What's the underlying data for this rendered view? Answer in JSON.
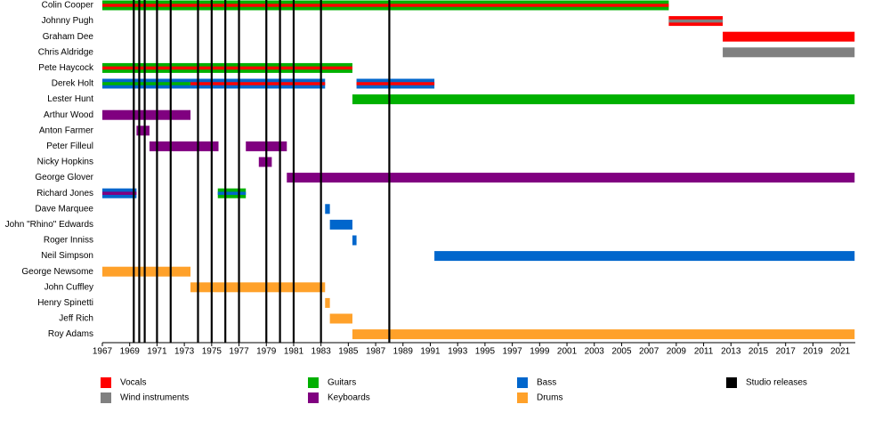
{
  "chart_data": {
    "type": "timeline",
    "xlim": [
      1967,
      2022.1
    ],
    "xticks": [
      1967,
      1969,
      1971,
      1973,
      1975,
      1977,
      1979,
      1981,
      1983,
      1985,
      1987,
      1989,
      1991,
      1993,
      1995,
      1997,
      1999,
      2001,
      2003,
      2005,
      2007,
      2009,
      2011,
      2013,
      2015,
      2017,
      2019,
      2021
    ],
    "roles": [
      {
        "name": "Vocals",
        "color": "#ff0000"
      },
      {
        "name": "Wind instruments",
        "color": "#808080"
      },
      {
        "name": "Guitars",
        "color": "#00b000"
      },
      {
        "name": "Keyboards",
        "color": "#800080"
      },
      {
        "name": "Bass",
        "color": "#0066cc"
      },
      {
        "name": "Drums",
        "color": "#ffa12a"
      }
    ],
    "releases": {
      "name": "Studio releases",
      "color": "#000000",
      "x": [
        1969.3,
        1969.7,
        1970.1,
        1971,
        1972,
        1974,
        1975,
        1976,
        1977,
        1979,
        1980,
        1981,
        1983,
        1988
      ]
    },
    "members": [
      {
        "name": "Colin Cooper",
        "periods": [
          {
            "start": 1967,
            "end": 2008.45,
            "roles": [
              "Guitars",
              "Vocals"
            ]
          }
        ]
      },
      {
        "name": "Johnny Pugh",
        "periods": [
          {
            "start": 2008.45,
            "end": 2012.4,
            "roles": [
              "Vocals",
              "Wind instruments"
            ]
          }
        ]
      },
      {
        "name": "Graham Dee",
        "periods": [
          {
            "start": 2012.4,
            "end": 2022.05,
            "roles": [
              "Vocals"
            ]
          }
        ]
      },
      {
        "name": "Chris Aldridge",
        "periods": [
          {
            "start": 2012.4,
            "end": 2022.05,
            "roles": [
              "Wind instruments"
            ]
          }
        ]
      },
      {
        "name": "Pete Haycock",
        "periods": [
          {
            "start": 1967,
            "end": 1985.3,
            "roles": [
              "Guitars",
              "Vocals"
            ]
          }
        ]
      },
      {
        "name": "Derek Holt",
        "periods": [
          {
            "start": 1967,
            "end": 1973.45,
            "roles": [
              "Bass",
              "Guitars"
            ]
          },
          {
            "start": 1973.45,
            "end": 1983.3,
            "roles": [
              "Bass",
              "Vocals"
            ]
          },
          {
            "start": 1985.6,
            "end": 1991.3,
            "roles": [
              "Bass",
              "Vocals"
            ]
          }
        ]
      },
      {
        "name": "Lester Hunt",
        "periods": [
          {
            "start": 1985.3,
            "end": 2022.05,
            "roles": [
              "Guitars"
            ]
          }
        ]
      },
      {
        "name": "Arthur Wood",
        "periods": [
          {
            "start": 1967,
            "end": 1973.45,
            "roles": [
              "Keyboards"
            ]
          }
        ]
      },
      {
        "name": "Anton Farmer",
        "periods": [
          {
            "start": 1969.5,
            "end": 1970.45,
            "roles": [
              "Keyboards"
            ]
          }
        ]
      },
      {
        "name": "Peter Filleul",
        "periods": [
          {
            "start": 1970.45,
            "end": 1975.5,
            "roles": [
              "Keyboards"
            ]
          },
          {
            "start": 1977.5,
            "end": 1980.5,
            "roles": [
              "Keyboards"
            ]
          }
        ]
      },
      {
        "name": "Nicky Hopkins",
        "periods": [
          {
            "start": 1978.45,
            "end": 1979.4,
            "roles": [
              "Keyboards"
            ]
          }
        ]
      },
      {
        "name": "George Glover",
        "periods": [
          {
            "start": 1980.5,
            "end": 2022.05,
            "roles": [
              "Keyboards"
            ]
          }
        ]
      },
      {
        "name": "Richard Jones",
        "periods": [
          {
            "start": 1967,
            "end": 1969.5,
            "roles": [
              "Bass",
              "Keyboards"
            ]
          },
          {
            "start": 1975.45,
            "end": 1977.5,
            "roles": [
              "Guitars",
              "Bass"
            ]
          }
        ]
      },
      {
        "name": "Dave Marquee",
        "periods": [
          {
            "start": 1983.3,
            "end": 1983.65,
            "roles": [
              "Bass"
            ]
          }
        ]
      },
      {
        "name": "John \"Rhino\" Edwards",
        "periods": [
          {
            "start": 1983.65,
            "end": 1985.3,
            "roles": [
              "Bass"
            ]
          }
        ]
      },
      {
        "name": "Roger Inniss",
        "periods": [
          {
            "start": 1985.3,
            "end": 1985.6,
            "roles": [
              "Bass"
            ]
          }
        ]
      },
      {
        "name": "Neil Simpson",
        "periods": [
          {
            "start": 1991.3,
            "end": 2022.05,
            "roles": [
              "Bass"
            ]
          }
        ]
      },
      {
        "name": "George Newsome",
        "periods": [
          {
            "start": 1967,
            "end": 1973.45,
            "roles": [
              "Drums"
            ]
          }
        ]
      },
      {
        "name": "John Cuffley",
        "periods": [
          {
            "start": 1973.45,
            "end": 1983.3,
            "roles": [
              "Drums"
            ]
          }
        ]
      },
      {
        "name": "Henry Spinetti",
        "periods": [
          {
            "start": 1983.3,
            "end": 1983.65,
            "roles": [
              "Drums"
            ]
          }
        ]
      },
      {
        "name": "Jeff Rich",
        "periods": [
          {
            "start": 1983.65,
            "end": 1985.3,
            "roles": [
              "Drums"
            ]
          }
        ]
      },
      {
        "name": "Roy Adams",
        "periods": [
          {
            "start": 1985.3,
            "end": 2022.05,
            "roles": [
              "Drums"
            ]
          }
        ]
      }
    ]
  }
}
